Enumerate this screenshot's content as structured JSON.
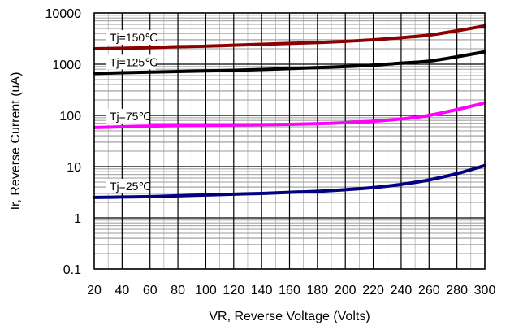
{
  "chart_data": {
    "type": "line",
    "xlabel": "VR, Reverse Voltage (Volts)",
    "ylabel": "Ir, Reverse Current (uA)",
    "xlim": [
      20,
      300
    ],
    "ylim": [
      0.1,
      10000
    ],
    "yscale": "log",
    "grid": true,
    "x_ticks": [
      20,
      40,
      60,
      80,
      100,
      120,
      140,
      160,
      180,
      200,
      220,
      240,
      260,
      280,
      300
    ],
    "x_tick_labels": [
      "20",
      "40",
      "60",
      "80",
      "100",
      "120",
      "140",
      "160",
      "180",
      "200",
      "220",
      "240",
      "260",
      "280",
      "300"
    ],
    "y_ticks": [
      0.1,
      1,
      10,
      100,
      1000,
      10000
    ],
    "y_tick_labels": [
      "0.1",
      "1",
      "10",
      "100",
      "1000",
      "10000"
    ],
    "x": [
      20,
      40,
      60,
      80,
      100,
      120,
      140,
      160,
      180,
      200,
      220,
      240,
      260,
      280,
      300
    ],
    "series": [
      {
        "name": "Tj=150℃",
        "color": "#8B0000",
        "values": [
          2000,
          2050,
          2100,
          2200,
          2250,
          2350,
          2450,
          2550,
          2650,
          2800,
          3000,
          3300,
          3700,
          4500,
          5600
        ]
      },
      {
        "name": "Tj=125℃",
        "color": "#000000",
        "values": [
          660,
          680,
          700,
          720,
          740,
          760,
          790,
          820,
          860,
          900,
          960,
          1050,
          1150,
          1400,
          1750
        ]
      },
      {
        "name": "Tj=75℃",
        "color": "#FF00FF",
        "values": [
          58,
          60,
          62,
          63,
          64,
          65,
          66,
          67,
          69,
          72,
          77,
          85,
          100,
          130,
          175
        ]
      },
      {
        "name": "Tj=25℃",
        "color": "#000080",
        "values": [
          2.5,
          2.55,
          2.6,
          2.7,
          2.8,
          2.9,
          3.0,
          3.15,
          3.3,
          3.55,
          3.9,
          4.5,
          5.5,
          7.3,
          10.5
        ]
      }
    ]
  }
}
